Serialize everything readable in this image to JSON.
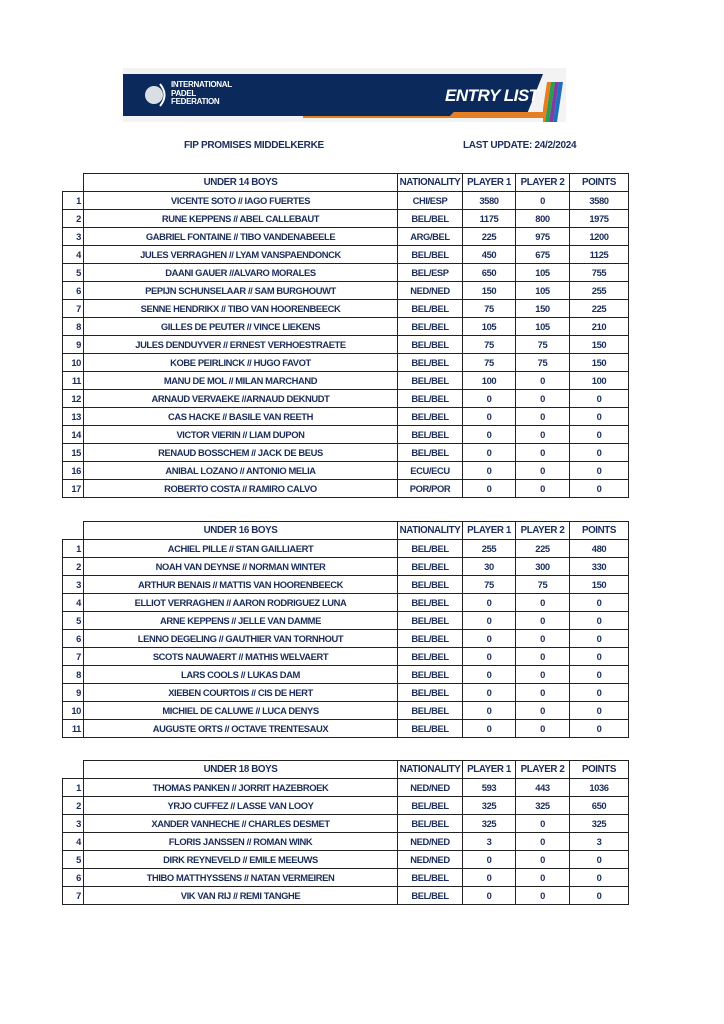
{
  "header": {
    "org_line1": "INTERNATIONAL",
    "org_line2": "PADEL",
    "org_line3": "FEDERATION",
    "title": "ENTRY LIST",
    "brand_color": "#0b2a5b",
    "accent": "#e67e22"
  },
  "event": "FIP PROMISES MIDDELKERKE",
  "last_update": "LAST UPDATE: 24/2/2024",
  "columns": {
    "nationality": "NATIONALITY",
    "player1": "PLAYER 1",
    "player2": "PLAYER 2",
    "points": "POINTS"
  },
  "tables": [
    {
      "category": "UNDER 14 BOYS",
      "rows": [
        [
          "1",
          "VICENTE SOTO // IAGO FUERTES",
          "CHI/ESP",
          "3580",
          "0",
          "3580"
        ],
        [
          "2",
          "RUNE KEPPENS // ABEL CALLEBAUT",
          "BEL/BEL",
          "1175",
          "800",
          "1975"
        ],
        [
          "3",
          "GABRIEL FONTAINE // TIBO VANDENABEELE",
          "ARG/BEL",
          "225",
          "975",
          "1200"
        ],
        [
          "4",
          "JULES VERRAGHEN // LYAM VANSPAENDONCK",
          "BEL/BEL",
          "450",
          "675",
          "1125"
        ],
        [
          "5",
          "DAANI GAUER //ALVARO MORALES",
          "BEL/ESP",
          "650",
          "105",
          "755"
        ],
        [
          "6",
          "PEPIJN SCHUNSELAAR // SAM BURGHOUWT",
          "NED/NED",
          "150",
          "105",
          "255"
        ],
        [
          "7",
          "SENNE HENDRIKX // TIBO VAN HOORENBEECK",
          "BEL/BEL",
          "75",
          "150",
          "225"
        ],
        [
          "8",
          "GILLES DE PEUTER // VINCE LIEKENS",
          "BEL/BEL",
          "105",
          "105",
          "210"
        ],
        [
          "9",
          "JULES DENDUYVER // ERNEST VERHOESTRAETE",
          "BEL/BEL",
          "75",
          "75",
          "150"
        ],
        [
          "10",
          "KOBE PEIRLINCK // HUGO FAVOT",
          "BEL/BEL",
          "75",
          "75",
          "150"
        ],
        [
          "11",
          "MANU DE MOL // MILAN MARCHAND",
          "BEL/BEL",
          "100",
          "0",
          "100"
        ],
        [
          "12",
          "ARNAUD VERVAEKE //ARNAUD DEKNUDT",
          "BEL/BEL",
          "0",
          "0",
          "0"
        ],
        [
          "13",
          "CAS HACKE // BASILE VAN REETH",
          "BEL/BEL",
          "0",
          "0",
          "0"
        ],
        [
          "14",
          "VICTOR VIERIN // LIAM DUPON",
          "BEL/BEL",
          "0",
          "0",
          "0"
        ],
        [
          "15",
          "RENAUD BOSSCHEM // JACK DE BEUS",
          "BEL/BEL",
          "0",
          "0",
          "0"
        ],
        [
          "16",
          "ANIBAL LOZANO // ANTONIO MELIA",
          "ECU/ECU",
          "0",
          "0",
          "0"
        ],
        [
          "17",
          "ROBERTO COSTA // RAMIRO CALVO",
          "POR/POR",
          "0",
          "0",
          "0"
        ]
      ]
    },
    {
      "category": "UNDER 16 BOYS",
      "rows": [
        [
          "1",
          "ACHIEL PILLE // STAN GAILLIAERT",
          "BEL/BEL",
          "255",
          "225",
          "480"
        ],
        [
          "2",
          "NOAH VAN DEYNSE // NORMAN WINTER",
          "BEL/BEL",
          "30",
          "300",
          "330"
        ],
        [
          "3",
          "ARTHUR BENAIS // MATTIS VAN HOORENBEECK",
          "BEL/BEL",
          "75",
          "75",
          "150"
        ],
        [
          "4",
          "ELLIOT VERRAGHEN // AARON RODRIGUEZ LUNA",
          "BEL/BEL",
          "0",
          "0",
          "0"
        ],
        [
          "5",
          "ARNE KEPPENS // JELLE VAN DAMME",
          "BEL/BEL",
          "0",
          "0",
          "0"
        ],
        [
          "6",
          "LENNO DEGELING // GAUTHIER VAN TORNHOUT",
          "BEL/BEL",
          "0",
          "0",
          "0"
        ],
        [
          "7",
          "SCOTS NAUWAERT // MATHIS WELVAERT",
          "BEL/BEL",
          "0",
          "0",
          "0"
        ],
        [
          "8",
          "LARS COOLS // LUKAS DAM",
          "BEL/BEL",
          "0",
          "0",
          "0"
        ],
        [
          "9",
          "XIEBEN COURTOIS // CIS DE HERT",
          "BEL/BEL",
          "0",
          "0",
          "0"
        ],
        [
          "10",
          "MICHIEL DE CALUWE // LUCA DENYS",
          "BEL/BEL",
          "0",
          "0",
          "0"
        ],
        [
          "11",
          "AUGUSTE ORTS // OCTAVE TRENTESAUX",
          "BEL/BEL",
          "0",
          "0",
          "0"
        ]
      ]
    },
    {
      "category": "UNDER 18 BOYS",
      "rows": [
        [
          "1",
          "THOMAS PANKEN // JORRIT HAZEBROEK",
          "NED/NED",
          "593",
          "443",
          "1036"
        ],
        [
          "2",
          "YRJO CUFFEZ // LASSE VAN LOOY",
          "BEL/BEL",
          "325",
          "325",
          "650"
        ],
        [
          "3",
          "XANDER VANHECHE // CHARLES DESMET",
          "BEL/BEL",
          "325",
          "0",
          "325"
        ],
        [
          "4",
          "FLORIS JANSSEN // ROMAN WINK",
          "NED/NED",
          "3",
          "0",
          "3"
        ],
        [
          "5",
          "DIRK REYNEVELD // EMILE MEEUWS",
          "NED/NED",
          "0",
          "0",
          "0"
        ],
        [
          "6",
          "THIBO MATTHYSSENS // NATAN VERMEIREN",
          "BEL/BEL",
          "0",
          "0",
          "0"
        ],
        [
          "7",
          "VIK VAN RIJ // REMI TANGHE",
          "BEL/BEL",
          "0",
          "0",
          "0"
        ]
      ]
    }
  ]
}
